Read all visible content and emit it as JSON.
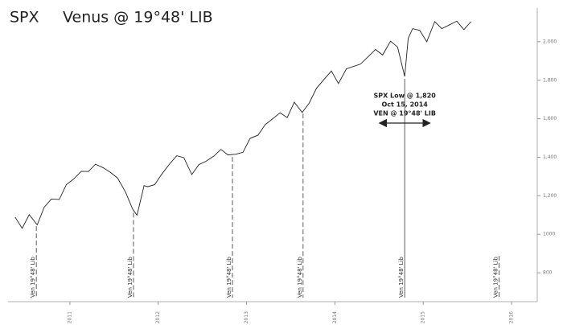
{
  "chart_data": {
    "type": "line",
    "title": "SPX",
    "subtitle": "Venus @ 19°48' LIB",
    "x": [
      2010.38,
      2010.46,
      2010.54,
      2010.63,
      2010.71,
      2010.79,
      2010.88,
      2010.96,
      2011.04,
      2011.13,
      2011.21,
      2011.29,
      2011.38,
      2011.46,
      2011.54,
      2011.63,
      2011.71,
      2011.76,
      2011.84,
      2011.88,
      2011.96,
      2012.04,
      2012.13,
      2012.21,
      2012.29,
      2012.38,
      2012.46,
      2012.54,
      2012.63,
      2012.71,
      2012.79,
      2012.88,
      2012.96,
      2013.04,
      2013.13,
      2013.21,
      2013.29,
      2013.38,
      2013.46,
      2013.54,
      2013.63,
      2013.71,
      2013.79,
      2013.88,
      2013.96,
      2014.04,
      2014.13,
      2014.21,
      2014.29,
      2014.38,
      2014.46,
      2014.54,
      2014.63,
      2014.71,
      2014.79,
      2014.83,
      2014.88,
      2014.96,
      2015.04,
      2015.13,
      2015.21,
      2015.29,
      2015.38,
      2015.46,
      2015.54
    ],
    "series": [
      {
        "name": "SPX",
        "color": "#222222",
        "values": [
          1089,
          1031,
          1102,
          1049,
          1141,
          1183,
          1181,
          1258,
          1286,
          1327,
          1326,
          1364,
          1345,
          1321,
          1292,
          1219,
          1131,
          1099,
          1253,
          1247,
          1258,
          1312,
          1366,
          1408,
          1398,
          1310,
          1362,
          1379,
          1406,
          1441,
          1412,
          1416,
          1426,
          1498,
          1515,
          1569,
          1598,
          1631,
          1606,
          1686,
          1633,
          1682,
          1757,
          1806,
          1848,
          1783,
          1859,
          1872,
          1884,
          1924,
          1960,
          1931,
          2003,
          1972,
          1820,
          2018,
          2068,
          2059,
          2000,
          2105,
          2068,
          2086,
          2107,
          2063,
          2104
        ]
      }
    ],
    "xlim": [
      2010.3,
      2016.4
    ],
    "xticks": [
      2011,
      2012,
      2013,
      2014,
      2015,
      2016
    ],
    "ylim": [
      650,
      2175
    ],
    "yticks": [
      800,
      1000,
      {
        "value": 1200,
        "label": "1,200"
      },
      {
        "value": 1400,
        "label": "1,400"
      },
      {
        "value": 1600,
        "label": "1,600"
      },
      {
        "value": 1800,
        "label": "1,800"
      },
      {
        "value": 2000,
        "label": "2,000"
      }
    ],
    "venus_lines": [
      {
        "x": 2010.62,
        "label": "Ven 19°48' Lib"
      },
      {
        "x": 2011.72,
        "label": "Ven 19°48' Lib"
      },
      {
        "x": 2012.84,
        "label": "Ven 19°48' Lib"
      },
      {
        "x": 2013.64,
        "label": "Ven 19°48' Lib"
      },
      {
        "x": 2014.79,
        "label": "Ven 19°48' Lib"
      },
      {
        "x": 2015.86,
        "label": "Ven 19°48' Lib"
      }
    ],
    "annotation": {
      "x": 2014.79,
      "lines": [
        "SPX Low @ 1,820",
        "Oct 15, 2014",
        "VEN @ 19°48' LIB"
      ]
    }
  }
}
